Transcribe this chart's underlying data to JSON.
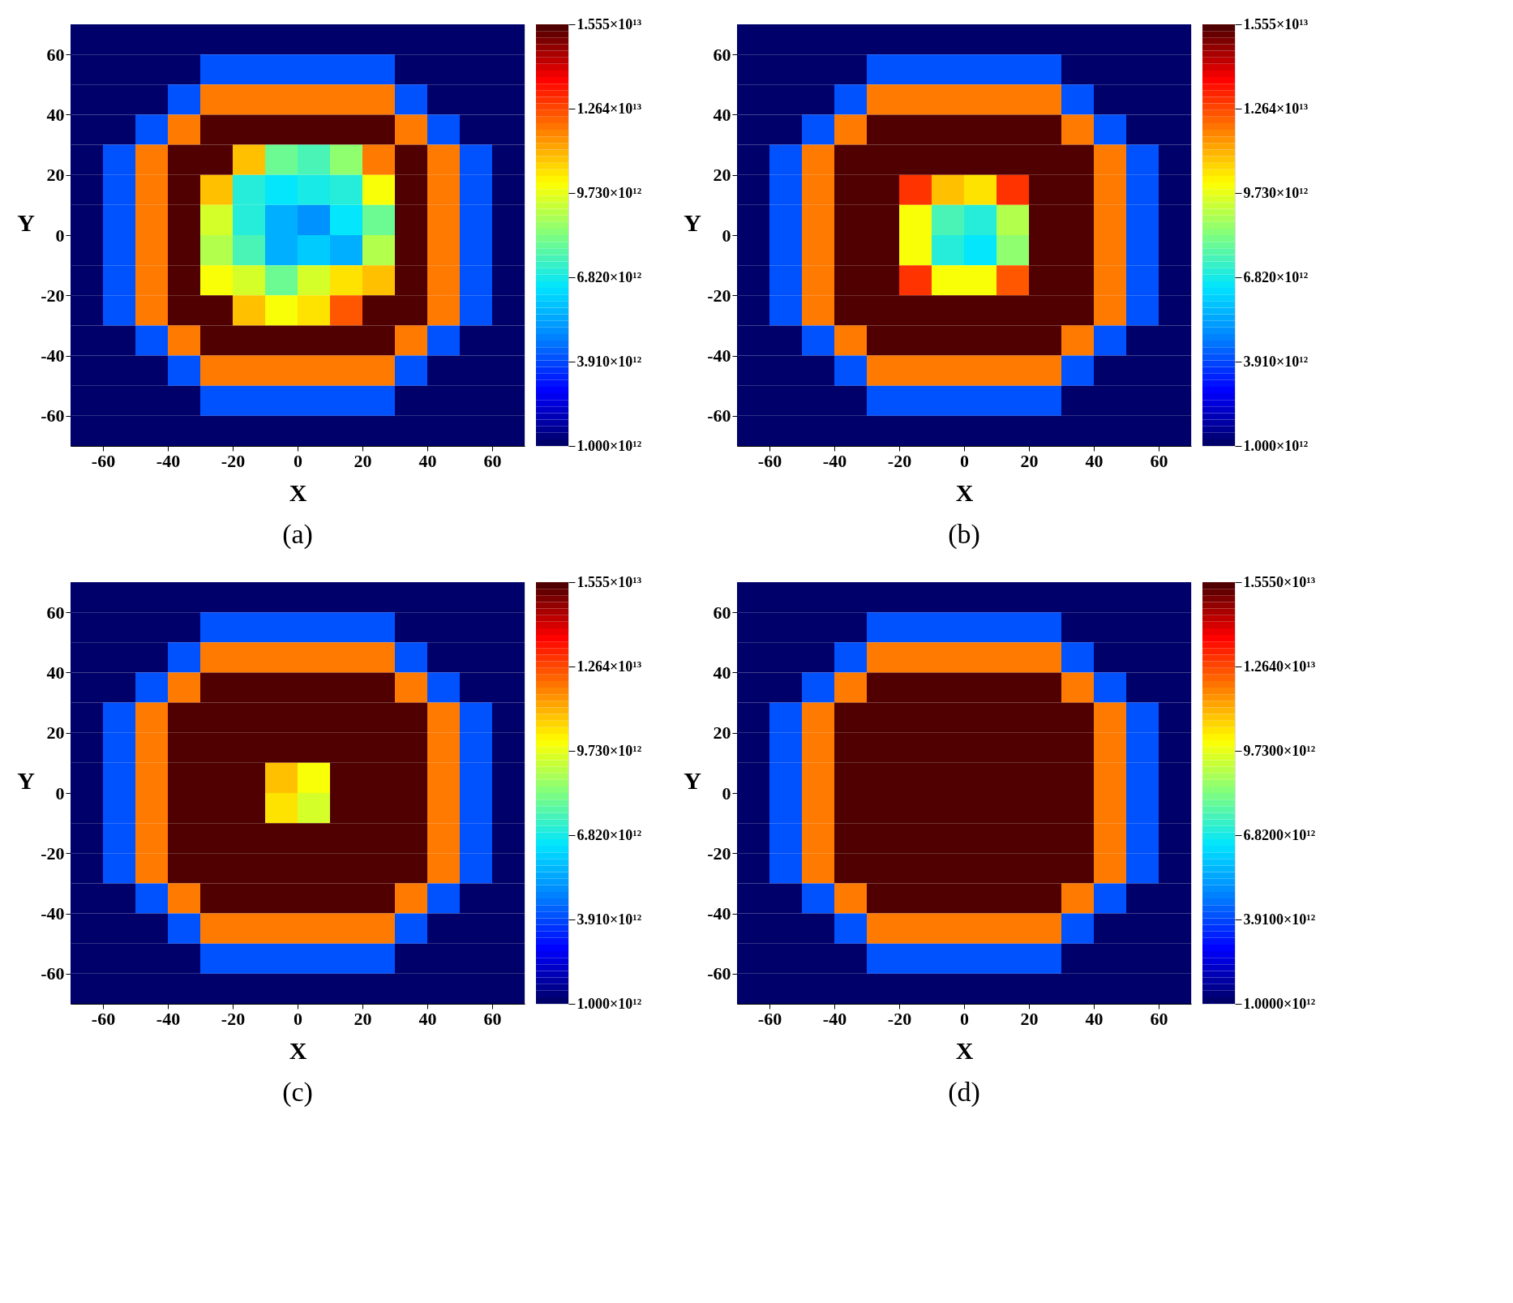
{
  "chart_data": [
    {
      "type": "heatmap",
      "title": "(a)",
      "xlabel": "X",
      "ylabel": "Y",
      "xlim": [
        -70,
        70
      ],
      "ylim": [
        -70,
        70
      ],
      "xticks": [
        -60,
        -40,
        -20,
        0,
        20,
        40,
        60
      ],
      "yticks": [
        -60,
        -40,
        -20,
        0,
        20,
        40,
        60
      ],
      "grid": false,
      "x": [
        -65,
        -55,
        -45,
        -35,
        -25,
        -15,
        -5,
        5,
        15,
        25,
        35,
        45,
        55,
        65
      ],
      "y": [
        65,
        55,
        45,
        35,
        25,
        15,
        5,
        -5,
        -15,
        -25,
        -35,
        -45,
        -55,
        -65
      ],
      "clim": [
        1000000000000.0,
        15550000000000.0
      ],
      "cticks": [
        {
          "value": 1000000000000.0,
          "label": "1.000×10¹²"
        },
        {
          "value": 3910000000000.0,
          "label": "3.910×10¹²"
        },
        {
          "value": 6820000000000.0,
          "label": "6.820×10¹²"
        },
        {
          "value": 9730000000000.0,
          "label": "9.730×10¹²"
        },
        {
          "value": 12640000000000.0,
          "label": "1.264×10¹³"
        },
        {
          "value": 15550000000000.0,
          "label": "1.555×10¹³"
        }
      ],
      "cells": [
        [
          1000000000000.0,
          1000000000000.0,
          1000000000000.0,
          1000000000000.0,
          1000000000000.0,
          1000000000000.0,
          1000000000000.0,
          1000000000000.0,
          1000000000000.0,
          1000000000000.0,
          1000000000000.0,
          1000000000000.0,
          1000000000000.0,
          1000000000000.0
        ],
        [
          1000000000000.0,
          1000000000000.0,
          1000000000000.0,
          1000000000000.0,
          4000000000000.0,
          4000000000000.0,
          4000000000000.0,
          4000000000000.0,
          4000000000000.0,
          4000000000000.0,
          1000000000000.0,
          1000000000000.0,
          1000000000000.0,
          1000000000000.0
        ],
        [
          1000000000000.0,
          1000000000000.0,
          1000000000000.0,
          4000000000000.0,
          12000000000000.0,
          12000000000000.0,
          12000000000000.0,
          12000000000000.0,
          12000000000000.0,
          12000000000000.0,
          4000000000000.0,
          1000000000000.0,
          1000000000000.0,
          1000000000000.0
        ],
        [
          1000000000000.0,
          1000000000000.0,
          4000000000000.0,
          12000000000000.0,
          15550000000000.0,
          15550000000000.0,
          15550000000000.0,
          15550000000000.0,
          15550000000000.0,
          15550000000000.0,
          12000000000000.0,
          4000000000000.0,
          1000000000000.0,
          1000000000000.0
        ],
        [
          1000000000000.0,
          4000000000000.0,
          12000000000000.0,
          15550000000000.0,
          15550000000000.0,
          11000000000000.0,
          8000000000000.0,
          7500000000000.0,
          8500000000000.0,
          12000000000000.0,
          15550000000000.0,
          12000000000000.0,
          4000000000000.0,
          1000000000000.0
        ],
        [
          1000000000000.0,
          4000000000000.0,
          12000000000000.0,
          15550000000000.0,
          11000000000000.0,
          7000000000000.0,
          6500000000000.0,
          6800000000000.0,
          7000000000000.0,
          10000000000000.0,
          15550000000000.0,
          12000000000000.0,
          4000000000000.0,
          1000000000000.0
        ],
        [
          1000000000000.0,
          4000000000000.0,
          12000000000000.0,
          15550000000000.0,
          9500000000000.0,
          7000000000000.0,
          5500000000000.0,
          5000000000000.0,
          6500000000000.0,
          8000000000000.0,
          15550000000000.0,
          12000000000000.0,
          4000000000000.0,
          1000000000000.0
        ],
        [
          1000000000000.0,
          4000000000000.0,
          12000000000000.0,
          15550000000000.0,
          9000000000000.0,
          7500000000000.0,
          5500000000000.0,
          6000000000000.0,
          5500000000000.0,
          9000000000000.0,
          15550000000000.0,
          12000000000000.0,
          4000000000000.0,
          1000000000000.0
        ],
        [
          1000000000000.0,
          4000000000000.0,
          12000000000000.0,
          15550000000000.0,
          10000000000000.0,
          9500000000000.0,
          8000000000000.0,
          9500000000000.0,
          10500000000000.0,
          11000000000000.0,
          15550000000000.0,
          12000000000000.0,
          4000000000000.0,
          1000000000000.0
        ],
        [
          1000000000000.0,
          4000000000000.0,
          12000000000000.0,
          15550000000000.0,
          15550000000000.0,
          11000000000000.0,
          10000000000000.0,
          10500000000000.0,
          12500000000000.0,
          15550000000000.0,
          15550000000000.0,
          12000000000000.0,
          4000000000000.0,
          1000000000000.0
        ],
        [
          1000000000000.0,
          1000000000000.0,
          4000000000000.0,
          12000000000000.0,
          15550000000000.0,
          15550000000000.0,
          15550000000000.0,
          15550000000000.0,
          15550000000000.0,
          15550000000000.0,
          12000000000000.0,
          4000000000000.0,
          1000000000000.0,
          1000000000000.0
        ],
        [
          1000000000000.0,
          1000000000000.0,
          1000000000000.0,
          4000000000000.0,
          12000000000000.0,
          12000000000000.0,
          12000000000000.0,
          12000000000000.0,
          12000000000000.0,
          12000000000000.0,
          4000000000000.0,
          1000000000000.0,
          1000000000000.0,
          1000000000000.0
        ],
        [
          1000000000000.0,
          1000000000000.0,
          1000000000000.0,
          1000000000000.0,
          4000000000000.0,
          4000000000000.0,
          4000000000000.0,
          4000000000000.0,
          4000000000000.0,
          4000000000000.0,
          1000000000000.0,
          1000000000000.0,
          1000000000000.0,
          1000000000000.0
        ],
        [
          1000000000000.0,
          1000000000000.0,
          1000000000000.0,
          1000000000000.0,
          1000000000000.0,
          1000000000000.0,
          1000000000000.0,
          1000000000000.0,
          1000000000000.0,
          1000000000000.0,
          1000000000000.0,
          1000000000000.0,
          1000000000000.0,
          1000000000000.0
        ]
      ]
    },
    {
      "type": "heatmap",
      "title": "(b)",
      "xlabel": "X",
      "ylabel": "Y",
      "xlim": [
        -70,
        70
      ],
      "ylim": [
        -70,
        70
      ],
      "xticks": [
        -60,
        -40,
        -20,
        0,
        20,
        40,
        60
      ],
      "yticks": [
        -60,
        -40,
        -20,
        0,
        20,
        40,
        60
      ],
      "grid": false,
      "x": [
        -65,
        -55,
        -45,
        -35,
        -25,
        -15,
        -5,
        5,
        15,
        25,
        35,
        45,
        55,
        65
      ],
      "y": [
        65,
        55,
        45,
        35,
        25,
        15,
        5,
        -5,
        -15,
        -25,
        -35,
        -45,
        -55,
        -65
      ],
      "clim": [
        1000000000000.0,
        15550000000000.0
      ],
      "cticks": [
        {
          "value": 1000000000000.0,
          "label": "1.000×10¹²"
        },
        {
          "value": 3910000000000.0,
          "label": "3.910×10¹²"
        },
        {
          "value": 6820000000000.0,
          "label": "6.820×10¹²"
        },
        {
          "value": 9730000000000.0,
          "label": "9.730×10¹²"
        },
        {
          "value": 12640000000000.0,
          "label": "1.264×10¹³"
        },
        {
          "value": 15550000000000.0,
          "label": "1.555×10¹³"
        }
      ],
      "cells": [
        [
          1000000000000.0,
          1000000000000.0,
          1000000000000.0,
          1000000000000.0,
          1000000000000.0,
          1000000000000.0,
          1000000000000.0,
          1000000000000.0,
          1000000000000.0,
          1000000000000.0,
          1000000000000.0,
          1000000000000.0,
          1000000000000.0,
          1000000000000.0
        ],
        [
          1000000000000.0,
          1000000000000.0,
          1000000000000.0,
          1000000000000.0,
          4000000000000.0,
          4000000000000.0,
          4000000000000.0,
          4000000000000.0,
          4000000000000.0,
          4000000000000.0,
          1000000000000.0,
          1000000000000.0,
          1000000000000.0,
          1000000000000.0
        ],
        [
          1000000000000.0,
          1000000000000.0,
          1000000000000.0,
          4000000000000.0,
          12000000000000.0,
          12000000000000.0,
          12000000000000.0,
          12000000000000.0,
          12000000000000.0,
          12000000000000.0,
          4000000000000.0,
          1000000000000.0,
          1000000000000.0,
          1000000000000.0
        ],
        [
          1000000000000.0,
          1000000000000.0,
          4000000000000.0,
          12000000000000.0,
          15550000000000.0,
          15550000000000.0,
          15550000000000.0,
          15550000000000.0,
          15550000000000.0,
          15550000000000.0,
          12000000000000.0,
          4000000000000.0,
          1000000000000.0,
          1000000000000.0
        ],
        [
          1000000000000.0,
          4000000000000.0,
          12000000000000.0,
          15550000000000.0,
          15550000000000.0,
          15550000000000.0,
          15550000000000.0,
          15550000000000.0,
          15550000000000.0,
          15550000000000.0,
          15550000000000.0,
          12000000000000.0,
          4000000000000.0,
          1000000000000.0
        ],
        [
          1000000000000.0,
          4000000000000.0,
          12000000000000.0,
          15550000000000.0,
          15550000000000.0,
          13000000000000.0,
          11000000000000.0,
          10500000000000.0,
          13000000000000.0,
          15550000000000.0,
          15550000000000.0,
          12000000000000.0,
          4000000000000.0,
          1000000000000.0
        ],
        [
          1000000000000.0,
          4000000000000.0,
          12000000000000.0,
          15550000000000.0,
          15550000000000.0,
          10000000000000.0,
          7500000000000.0,
          7000000000000.0,
          9000000000000.0,
          15550000000000.0,
          15550000000000.0,
          12000000000000.0,
          4000000000000.0,
          1000000000000.0
        ],
        [
          1000000000000.0,
          4000000000000.0,
          12000000000000.0,
          15550000000000.0,
          15550000000000.0,
          10000000000000.0,
          7000000000000.0,
          6500000000000.0,
          8500000000000.0,
          15550000000000.0,
          15550000000000.0,
          12000000000000.0,
          4000000000000.0,
          1000000000000.0
        ],
        [
          1000000000000.0,
          4000000000000.0,
          12000000000000.0,
          15550000000000.0,
          15550000000000.0,
          13000000000000.0,
          10000000000000.0,
          10000000000000.0,
          12500000000000.0,
          15550000000000.0,
          15550000000000.0,
          12000000000000.0,
          4000000000000.0,
          1000000000000.0
        ],
        [
          1000000000000.0,
          4000000000000.0,
          12000000000000.0,
          15550000000000.0,
          15550000000000.0,
          15550000000000.0,
          15550000000000.0,
          15550000000000.0,
          15550000000000.0,
          15550000000000.0,
          15550000000000.0,
          12000000000000.0,
          4000000000000.0,
          1000000000000.0
        ],
        [
          1000000000000.0,
          1000000000000.0,
          4000000000000.0,
          12000000000000.0,
          15550000000000.0,
          15550000000000.0,
          15550000000000.0,
          15550000000000.0,
          15550000000000.0,
          15550000000000.0,
          12000000000000.0,
          4000000000000.0,
          1000000000000.0,
          1000000000000.0
        ],
        [
          1000000000000.0,
          1000000000000.0,
          1000000000000.0,
          4000000000000.0,
          12000000000000.0,
          12000000000000.0,
          12000000000000.0,
          12000000000000.0,
          12000000000000.0,
          12000000000000.0,
          4000000000000.0,
          1000000000000.0,
          1000000000000.0,
          1000000000000.0
        ],
        [
          1000000000000.0,
          1000000000000.0,
          1000000000000.0,
          1000000000000.0,
          4000000000000.0,
          4000000000000.0,
          4000000000000.0,
          4000000000000.0,
          4000000000000.0,
          4000000000000.0,
          1000000000000.0,
          1000000000000.0,
          1000000000000.0,
          1000000000000.0
        ],
        [
          1000000000000.0,
          1000000000000.0,
          1000000000000.0,
          1000000000000.0,
          1000000000000.0,
          1000000000000.0,
          1000000000000.0,
          1000000000000.0,
          1000000000000.0,
          1000000000000.0,
          1000000000000.0,
          1000000000000.0,
          1000000000000.0,
          1000000000000.0
        ]
      ]
    },
    {
      "type": "heatmap",
      "title": "(c)",
      "xlabel": "X",
      "ylabel": "Y",
      "xlim": [
        -70,
        70
      ],
      "ylim": [
        -70,
        70
      ],
      "xticks": [
        -60,
        -40,
        -20,
        0,
        20,
        40,
        60
      ],
      "yticks": [
        -60,
        -40,
        -20,
        0,
        20,
        40,
        60
      ],
      "grid": false,
      "x": [
        -65,
        -55,
        -45,
        -35,
        -25,
        -15,
        -5,
        5,
        15,
        25,
        35,
        45,
        55,
        65
      ],
      "y": [
        65,
        55,
        45,
        35,
        25,
        15,
        5,
        -5,
        -15,
        -25,
        -35,
        -45,
        -55,
        -65
      ],
      "clim": [
        1000000000000.0,
        15550000000000.0
      ],
      "cticks": [
        {
          "value": 1000000000000.0,
          "label": "1.000×10¹²"
        },
        {
          "value": 3910000000000.0,
          "label": "3.910×10¹²"
        },
        {
          "value": 6820000000000.0,
          "label": "6.820×10¹²"
        },
        {
          "value": 9730000000000.0,
          "label": "9.730×10¹²"
        },
        {
          "value": 12640000000000.0,
          "label": "1.264×10¹³"
        },
        {
          "value": 15550000000000.0,
          "label": "1.555×10¹³"
        }
      ],
      "cells": [
        [
          1000000000000.0,
          1000000000000.0,
          1000000000000.0,
          1000000000000.0,
          1000000000000.0,
          1000000000000.0,
          1000000000000.0,
          1000000000000.0,
          1000000000000.0,
          1000000000000.0,
          1000000000000.0,
          1000000000000.0,
          1000000000000.0,
          1000000000000.0
        ],
        [
          1000000000000.0,
          1000000000000.0,
          1000000000000.0,
          1000000000000.0,
          4000000000000.0,
          4000000000000.0,
          4000000000000.0,
          4000000000000.0,
          4000000000000.0,
          4000000000000.0,
          1000000000000.0,
          1000000000000.0,
          1000000000000.0,
          1000000000000.0
        ],
        [
          1000000000000.0,
          1000000000000.0,
          1000000000000.0,
          4000000000000.0,
          12000000000000.0,
          12000000000000.0,
          12000000000000.0,
          12000000000000.0,
          12000000000000.0,
          12000000000000.0,
          4000000000000.0,
          1000000000000.0,
          1000000000000.0,
          1000000000000.0
        ],
        [
          1000000000000.0,
          1000000000000.0,
          4000000000000.0,
          12000000000000.0,
          15550000000000.0,
          15550000000000.0,
          15550000000000.0,
          15550000000000.0,
          15550000000000.0,
          15550000000000.0,
          12000000000000.0,
          4000000000000.0,
          1000000000000.0,
          1000000000000.0
        ],
        [
          1000000000000.0,
          4000000000000.0,
          12000000000000.0,
          15550000000000.0,
          15550000000000.0,
          15550000000000.0,
          15550000000000.0,
          15550000000000.0,
          15550000000000.0,
          15550000000000.0,
          15550000000000.0,
          12000000000000.0,
          4000000000000.0,
          1000000000000.0
        ],
        [
          1000000000000.0,
          4000000000000.0,
          12000000000000.0,
          15550000000000.0,
          15550000000000.0,
          15550000000000.0,
          15550000000000.0,
          15550000000000.0,
          15550000000000.0,
          15550000000000.0,
          15550000000000.0,
          12000000000000.0,
          4000000000000.0,
          1000000000000.0
        ],
        [
          1000000000000.0,
          4000000000000.0,
          12000000000000.0,
          15550000000000.0,
          15550000000000.0,
          15550000000000.0,
          11000000000000.0,
          10000000000000.0,
          15550000000000.0,
          15550000000000.0,
          15550000000000.0,
          12000000000000.0,
          4000000000000.0,
          1000000000000.0
        ],
        [
          1000000000000.0,
          4000000000000.0,
          12000000000000.0,
          15550000000000.0,
          15550000000000.0,
          15550000000000.0,
          10500000000000.0,
          9500000000000.0,
          15550000000000.0,
          15550000000000.0,
          15550000000000.0,
          12000000000000.0,
          4000000000000.0,
          1000000000000.0
        ],
        [
          1000000000000.0,
          4000000000000.0,
          12000000000000.0,
          15550000000000.0,
          15550000000000.0,
          15550000000000.0,
          15550000000000.0,
          15550000000000.0,
          15550000000000.0,
          15550000000000.0,
          15550000000000.0,
          12000000000000.0,
          4000000000000.0,
          1000000000000.0
        ],
        [
          1000000000000.0,
          4000000000000.0,
          12000000000000.0,
          15550000000000.0,
          15550000000000.0,
          15550000000000.0,
          15550000000000.0,
          15550000000000.0,
          15550000000000.0,
          15550000000000.0,
          15550000000000.0,
          12000000000000.0,
          4000000000000.0,
          1000000000000.0
        ],
        [
          1000000000000.0,
          1000000000000.0,
          4000000000000.0,
          12000000000000.0,
          15550000000000.0,
          15550000000000.0,
          15550000000000.0,
          15550000000000.0,
          15550000000000.0,
          15550000000000.0,
          12000000000000.0,
          4000000000000.0,
          1000000000000.0,
          1000000000000.0
        ],
        [
          1000000000000.0,
          1000000000000.0,
          1000000000000.0,
          4000000000000.0,
          12000000000000.0,
          12000000000000.0,
          12000000000000.0,
          12000000000000.0,
          12000000000000.0,
          12000000000000.0,
          4000000000000.0,
          1000000000000.0,
          1000000000000.0,
          1000000000000.0
        ],
        [
          1000000000000.0,
          1000000000000.0,
          1000000000000.0,
          1000000000000.0,
          4000000000000.0,
          4000000000000.0,
          4000000000000.0,
          4000000000000.0,
          4000000000000.0,
          4000000000000.0,
          1000000000000.0,
          1000000000000.0,
          1000000000000.0,
          1000000000000.0
        ],
        [
          1000000000000.0,
          1000000000000.0,
          1000000000000.0,
          1000000000000.0,
          1000000000000.0,
          1000000000000.0,
          1000000000000.0,
          1000000000000.0,
          1000000000000.0,
          1000000000000.0,
          1000000000000.0,
          1000000000000.0,
          1000000000000.0,
          1000000000000.0
        ]
      ]
    },
    {
      "type": "heatmap",
      "title": "(d)",
      "xlabel": "X",
      "ylabel": "Y",
      "xlim": [
        -70,
        70
      ],
      "ylim": [
        -70,
        70
      ],
      "xticks": [
        -60,
        -40,
        -20,
        0,
        20,
        40,
        60
      ],
      "yticks": [
        -60,
        -40,
        -20,
        0,
        20,
        40,
        60
      ],
      "grid": false,
      "x": [
        -65,
        -55,
        -45,
        -35,
        -25,
        -15,
        -5,
        5,
        15,
        25,
        35,
        45,
        55,
        65
      ],
      "y": [
        65,
        55,
        45,
        35,
        25,
        15,
        5,
        -5,
        -15,
        -25,
        -35,
        -45,
        -55,
        -65
      ],
      "clim": [
        1000000000000.0,
        15550000000000.0
      ],
      "cticks": [
        {
          "value": 1000000000000.0,
          "label": "1.0000×10¹²"
        },
        {
          "value": 3910000000000.0,
          "label": "3.9100×10¹²"
        },
        {
          "value": 6820000000000.0,
          "label": "6.8200×10¹²"
        },
        {
          "value": 9730000000000.0,
          "label": "9.7300×10¹²"
        },
        {
          "value": 12640000000000.0,
          "label": "1.2640×10¹³"
        },
        {
          "value": 15550000000000.0,
          "label": "1.5550×10¹³"
        }
      ],
      "cells": [
        [
          1000000000000.0,
          1000000000000.0,
          1000000000000.0,
          1000000000000.0,
          1000000000000.0,
          1000000000000.0,
          1000000000000.0,
          1000000000000.0,
          1000000000000.0,
          1000000000000.0,
          1000000000000.0,
          1000000000000.0,
          1000000000000.0,
          1000000000000.0
        ],
        [
          1000000000000.0,
          1000000000000.0,
          1000000000000.0,
          1000000000000.0,
          4000000000000.0,
          4000000000000.0,
          4000000000000.0,
          4000000000000.0,
          4000000000000.0,
          4000000000000.0,
          1000000000000.0,
          1000000000000.0,
          1000000000000.0,
          1000000000000.0
        ],
        [
          1000000000000.0,
          1000000000000.0,
          1000000000000.0,
          4000000000000.0,
          12000000000000.0,
          12000000000000.0,
          12000000000000.0,
          12000000000000.0,
          12000000000000.0,
          12000000000000.0,
          4000000000000.0,
          1000000000000.0,
          1000000000000.0,
          1000000000000.0
        ],
        [
          1000000000000.0,
          1000000000000.0,
          4000000000000.0,
          12000000000000.0,
          15550000000000.0,
          15550000000000.0,
          15550000000000.0,
          15550000000000.0,
          15550000000000.0,
          15550000000000.0,
          12000000000000.0,
          4000000000000.0,
          1000000000000.0,
          1000000000000.0
        ],
        [
          1000000000000.0,
          4000000000000.0,
          12000000000000.0,
          15550000000000.0,
          15550000000000.0,
          15550000000000.0,
          15550000000000.0,
          15550000000000.0,
          15550000000000.0,
          15550000000000.0,
          15550000000000.0,
          12000000000000.0,
          4000000000000.0,
          1000000000000.0
        ],
        [
          1000000000000.0,
          4000000000000.0,
          12000000000000.0,
          15550000000000.0,
          15550000000000.0,
          15550000000000.0,
          15550000000000.0,
          15550000000000.0,
          15550000000000.0,
          15550000000000.0,
          15550000000000.0,
          12000000000000.0,
          4000000000000.0,
          1000000000000.0
        ],
        [
          1000000000000.0,
          4000000000000.0,
          12000000000000.0,
          15550000000000.0,
          15550000000000.0,
          15550000000000.0,
          15550000000000.0,
          15550000000000.0,
          15550000000000.0,
          15550000000000.0,
          15550000000000.0,
          12000000000000.0,
          4000000000000.0,
          1000000000000.0
        ],
        [
          1000000000000.0,
          4000000000000.0,
          12000000000000.0,
          15550000000000.0,
          15550000000000.0,
          15550000000000.0,
          15550000000000.0,
          15550000000000.0,
          15550000000000.0,
          15550000000000.0,
          15550000000000.0,
          12000000000000.0,
          4000000000000.0,
          1000000000000.0
        ],
        [
          1000000000000.0,
          4000000000000.0,
          12000000000000.0,
          15550000000000.0,
          15550000000000.0,
          15550000000000.0,
          15550000000000.0,
          15550000000000.0,
          15550000000000.0,
          15550000000000.0,
          15550000000000.0,
          12000000000000.0,
          4000000000000.0,
          1000000000000.0
        ],
        [
          1000000000000.0,
          4000000000000.0,
          12000000000000.0,
          15550000000000.0,
          15550000000000.0,
          15550000000000.0,
          15550000000000.0,
          15550000000000.0,
          15550000000000.0,
          15550000000000.0,
          15550000000000.0,
          12000000000000.0,
          4000000000000.0,
          1000000000000.0
        ],
        [
          1000000000000.0,
          1000000000000.0,
          4000000000000.0,
          12000000000000.0,
          15550000000000.0,
          15550000000000.0,
          15550000000000.0,
          15550000000000.0,
          15550000000000.0,
          15550000000000.0,
          12000000000000.0,
          4000000000000.0,
          1000000000000.0,
          1000000000000.0
        ],
        [
          1000000000000.0,
          1000000000000.0,
          1000000000000.0,
          4000000000000.0,
          12000000000000.0,
          12000000000000.0,
          12000000000000.0,
          12000000000000.0,
          12000000000000.0,
          12000000000000.0,
          4000000000000.0,
          1000000000000.0,
          1000000000000.0,
          1000000000000.0
        ],
        [
          1000000000000.0,
          1000000000000.0,
          1000000000000.0,
          1000000000000.0,
          4000000000000.0,
          4000000000000.0,
          4000000000000.0,
          4000000000000.0,
          4000000000000.0,
          4000000000000.0,
          1000000000000.0,
          1000000000000.0,
          1000000000000.0,
          1000000000000.0
        ],
        [
          1000000000000.0,
          1000000000000.0,
          1000000000000.0,
          1000000000000.0,
          1000000000000.0,
          1000000000000.0,
          1000000000000.0,
          1000000000000.0,
          1000000000000.0,
          1000000000000.0,
          1000000000000.0,
          1000000000000.0,
          1000000000000.0,
          1000000000000.0
        ]
      ]
    }
  ]
}
